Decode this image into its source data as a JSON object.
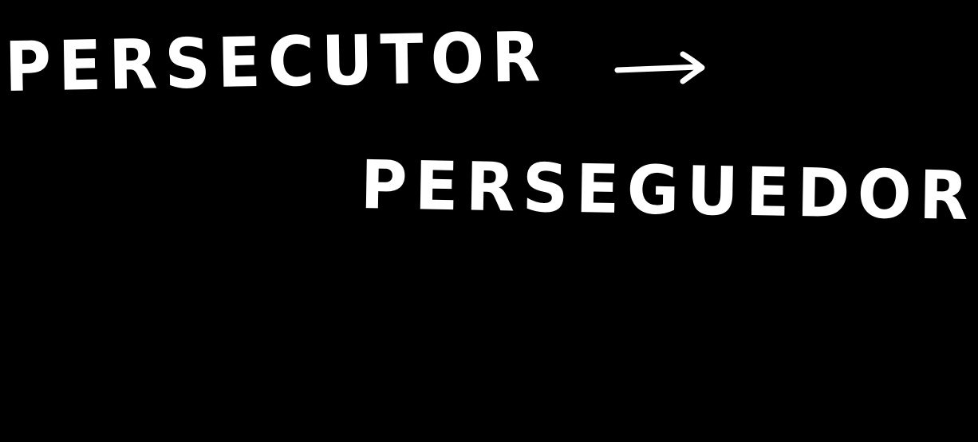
{
  "handwriting": {
    "line1": "PERSECUTOR",
    "arrow": "→",
    "line2": "PERSEGUEDOR"
  },
  "colors": {
    "background": "#000000",
    "ink": "#ffffff"
  }
}
